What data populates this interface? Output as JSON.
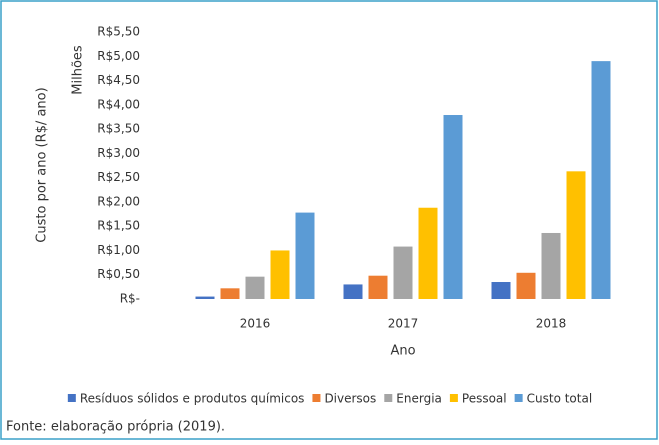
{
  "chart_data": {
    "type": "bar",
    "y_label": "Custo  por ano (R$/ ano)",
    "y_unit": "Milhões",
    "x_label": "Ano",
    "caption": "Fonte: elaboração própria (2019).",
    "categories": [
      "2016",
      "2017",
      "2018"
    ],
    "series": [
      {
        "name": "Resíduos sólidos e produtos químicos",
        "color": "#4472c4",
        "values": [
          0.05,
          0.3,
          0.35
        ]
      },
      {
        "name": "Diversos",
        "color": "#ed7d31",
        "values": [
          0.22,
          0.48,
          0.54
        ]
      },
      {
        "name": "Energia",
        "color": "#a5a5a5",
        "values": [
          0.46,
          1.08,
          1.36
        ]
      },
      {
        "name": "Pessoal",
        "color": "#ffc000",
        "values": [
          1.0,
          1.88,
          2.63
        ]
      },
      {
        "name": "Custo total",
        "color": "#5b9bd5",
        "values": [
          1.78,
          3.79,
          4.9
        ]
      }
    ],
    "ylim": [
      0,
      5.5
    ],
    "yticks": [
      {
        "value": 0,
        "label": "R$-"
      },
      {
        "value": 0.5,
        "label": "R$0,50"
      },
      {
        "value": 1,
        "label": "R$1,00"
      },
      {
        "value": 1.5,
        "label": "R$1,50"
      },
      {
        "value": 2,
        "label": "R$2,00"
      },
      {
        "value": 2.5,
        "label": "R$2,50"
      },
      {
        "value": 3,
        "label": "R$3,00"
      },
      {
        "value": 3.5,
        "label": "R$3,50"
      },
      {
        "value": 4,
        "label": "R$4,00"
      },
      {
        "value": 4.5,
        "label": "R$4,50"
      },
      {
        "value": 5,
        "label": "R$5,00"
      },
      {
        "value": 5.5,
        "label": "R$5,50"
      }
    ],
    "grid": false,
    "legend": "bottom"
  }
}
